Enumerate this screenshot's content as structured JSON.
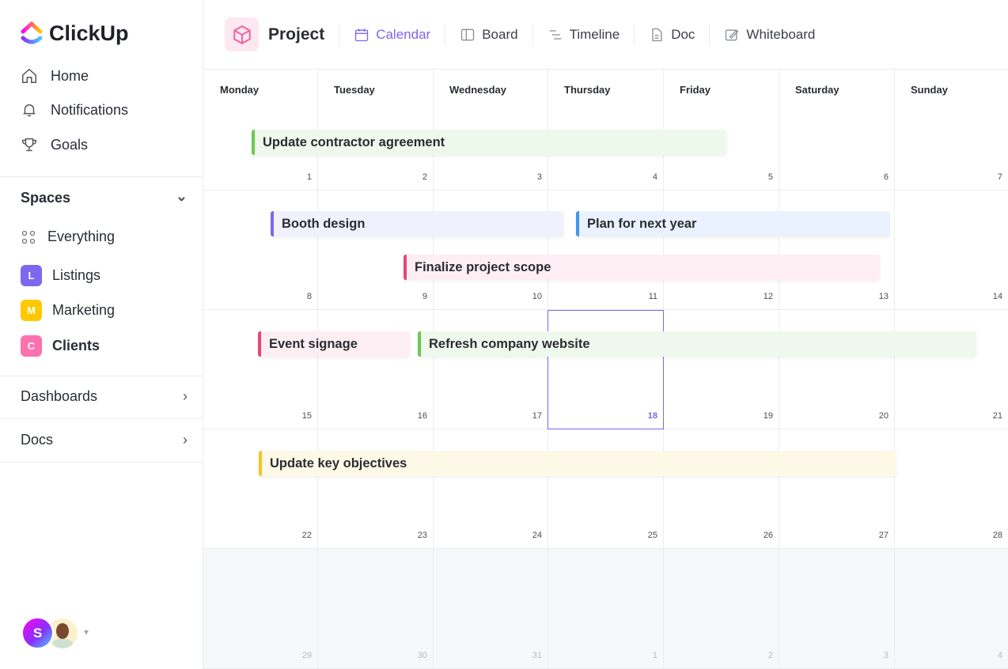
{
  "brand": {
    "name": "ClickUp"
  },
  "sidebar": {
    "nav": [
      {
        "label": "Home",
        "icon": "home-icon"
      },
      {
        "label": "Notifications",
        "icon": "bell-icon"
      },
      {
        "label": "Goals",
        "icon": "trophy-icon"
      }
    ],
    "spaces_label": "Spaces",
    "everything_label": "Everything",
    "spaces": [
      {
        "letter": "L",
        "label": "Listings",
        "color": "#7b68ee"
      },
      {
        "letter": "M",
        "label": "Marketing",
        "color": "#ffc800"
      },
      {
        "letter": "C",
        "label": "Clients",
        "color": "#fd71af"
      }
    ],
    "dashboards_label": "Dashboards",
    "docs_label": "Docs",
    "avatar_letter": "S"
  },
  "header": {
    "project_title": "Project",
    "tabs": [
      {
        "label": "Calendar",
        "active": true
      },
      {
        "label": "Board"
      },
      {
        "label": "Timeline"
      },
      {
        "label": "Doc"
      },
      {
        "label": "Whiteboard"
      }
    ]
  },
  "calendar": {
    "days": [
      "Monday",
      "Tuesday",
      "Wednesday",
      "Thursday",
      "Friday",
      "Saturday",
      "Sunday"
    ],
    "weeks": [
      [
        "1",
        "2",
        "3",
        "4",
        "5",
        "6",
        "7"
      ],
      [
        "8",
        "9",
        "10",
        "11",
        "12",
        "13",
        "14"
      ],
      [
        "15",
        "16",
        "17",
        "18",
        "19",
        "20",
        "21"
      ],
      [
        "22",
        "23",
        "24",
        "25",
        "26",
        "27",
        "28"
      ],
      [
        "29",
        "30",
        "31",
        "1",
        "2",
        "3",
        "4"
      ]
    ],
    "today": "18",
    "accent": "#7b68ee",
    "events": [
      {
        "title": "Update contractor agreement",
        "color": "#6bc950",
        "bg": "#eff8ec"
      },
      {
        "title": "Booth design",
        "color": "#7b68ee",
        "bg": "#f1f0fd"
      },
      {
        "title": "Plan for next year",
        "color": "#4194f6",
        "bg": "#e9f2fe"
      },
      {
        "title": "Finalize project scope",
        "color": "#e8457a",
        "bg": "#fdeef3"
      },
      {
        "title": "Event signage",
        "color": "#e8457a",
        "bg": "#fdeef3"
      },
      {
        "title": "Refresh company website",
        "color": "#6bc950",
        "bg": "#eff8ec"
      },
      {
        "title": "Update key objectives",
        "color": "#f7c325",
        "bg": "#fef8e6"
      }
    ]
  }
}
